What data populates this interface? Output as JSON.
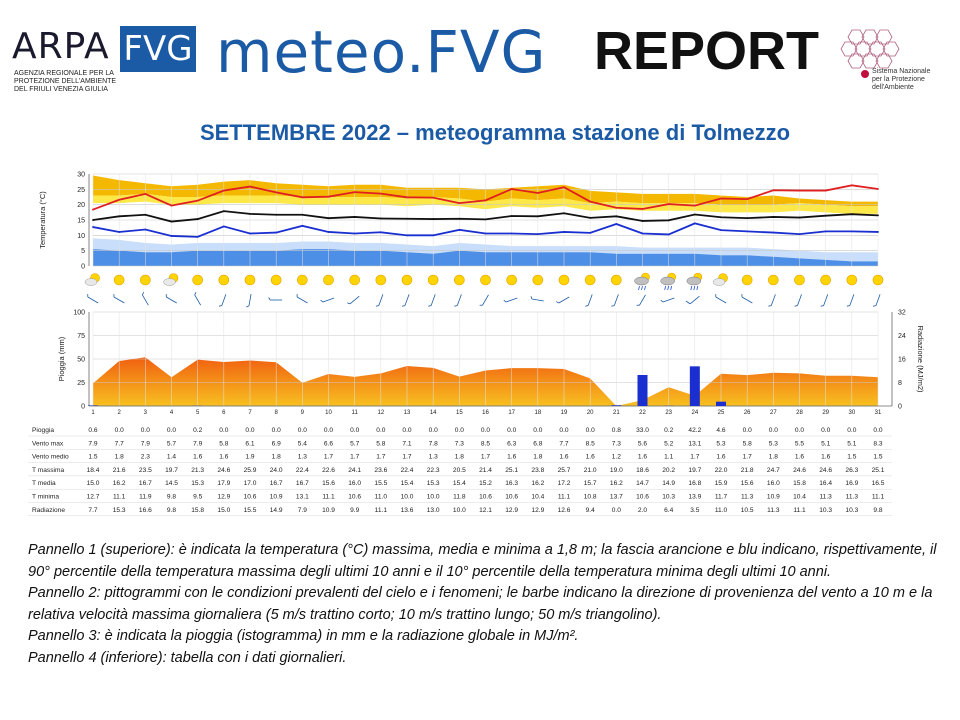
{
  "header": {
    "arpa": "ARPA",
    "fvg": "FVG",
    "agency_lines": [
      "AGENZIA REGIONALE PER LA",
      "PROTEZIONE DELL'AMBIENTE",
      "DEL FRIULI VENEZIA GIULIA"
    ],
    "meteo": "meteo.FVG",
    "report": "REPORT",
    "snpa_lines": [
      "Sistema Nazionale",
      "per la Protezione",
      "dell'Ambiente"
    ]
  },
  "subtitle": "SETTEMBRE 2022 – meteogramma stazione di Tolmezzo",
  "chart_data": [
    {
      "type": "line",
      "ylabel": "Temperatura (°C)",
      "ylim": [
        0,
        30
      ],
      "yticks": [
        0,
        5,
        10,
        15,
        20,
        25,
        30
      ],
      "x": [
        1,
        2,
        3,
        4,
        5,
        6,
        7,
        8,
        9,
        10,
        11,
        12,
        13,
        14,
        15,
        16,
        17,
        18,
        19,
        20,
        21,
        22,
        23,
        24,
        25,
        26,
        27,
        28,
        29,
        30,
        31
      ],
      "series": [
        {
          "name": "T massima",
          "color": "#e02020",
          "values": [
            18.4,
            21.6,
            23.5,
            19.7,
            21.3,
            24.6,
            25.9,
            24.0,
            22.4,
            22.6,
            24.1,
            23.6,
            22.4,
            22.3,
            20.5,
            21.4,
            25.1,
            23.8,
            25.7,
            21.0,
            19.0,
            18.6,
            20.2,
            19.7,
            22.0,
            21.8,
            24.7,
            24.6,
            24.6,
            26.3,
            25.1
          ]
        },
        {
          "name": "T media",
          "color": "#111111",
          "values": [
            15.0,
            16.2,
            16.7,
            14.5,
            15.3,
            17.9,
            17.0,
            16.7,
            16.7,
            15.6,
            16.0,
            15.5,
            15.4,
            15.3,
            15.4,
            15.2,
            16.3,
            16.2,
            17.2,
            15.7,
            16.2,
            14.7,
            14.9,
            16.8,
            15.9,
            15.6,
            16.0,
            15.8,
            16.4,
            16.9,
            16.5
          ]
        },
        {
          "name": "T minima",
          "color": "#1a2fd0",
          "values": [
            12.7,
            11.1,
            11.9,
            9.8,
            9.5,
            12.9,
            10.6,
            10.9,
            13.1,
            11.1,
            10.6,
            11.0,
            10.0,
            10.0,
            11.8,
            10.6,
            10.6,
            10.4,
            11.1,
            10.8,
            13.7,
            10.6,
            10.3,
            13.9,
            11.7,
            11.3,
            10.9,
            10.4,
            11.3,
            11.3,
            11.1
          ]
        }
      ],
      "band_max_p90": [
        29.5,
        28.0,
        27.0,
        26.0,
        26.5,
        27.5,
        28.0,
        27.0,
        26.5,
        26.0,
        26.5,
        26.5,
        25.5,
        25.5,
        25.5,
        25.0,
        25.5,
        26.0,
        26.5,
        24.5,
        24.0,
        23.5,
        23.5,
        23.5,
        23.0,
        22.5,
        23.0,
        22.0,
        21.5,
        21.0,
        21.0
      ],
      "band_max_mean": [
        23.0,
        23.0,
        23.5,
        22.5,
        22.5,
        23.0,
        23.0,
        23.0,
        22.5,
        22.5,
        22.5,
        22.5,
        22.0,
        22.5,
        22.0,
        21.0,
        22.0,
        21.5,
        22.0,
        20.5,
        21.0,
        20.5,
        20.5,
        20.5,
        20.0,
        20.0,
        20.0,
        20.5,
        20.0,
        19.5,
        19.5
      ],
      "band_min_mean": [
        9.0,
        8.5,
        7.5,
        7.0,
        7.5,
        7.5,
        7.5,
        7.5,
        8.0,
        8.0,
        7.5,
        7.5,
        7.0,
        6.5,
        7.5,
        7.0,
        6.5,
        6.5,
        6.5,
        6.5,
        6.5,
        6.0,
        6.0,
        6.0,
        6.0,
        6.0,
        5.5,
        5.0,
        4.5,
        4.5,
        4.5
      ],
      "band_min_p10": [
        5.5,
        5.0,
        4.5,
        4.5,
        5.0,
        5.0,
        5.0,
        5.0,
        5.5,
        5.5,
        5.0,
        5.0,
        4.5,
        4.0,
        5.0,
        4.5,
        4.5,
        4.5,
        4.5,
        4.5,
        4.0,
        4.0,
        4.0,
        4.0,
        3.5,
        3.5,
        3.0,
        2.5,
        2.0,
        1.5,
        1.5
      ],
      "grid": true
    },
    {
      "type": "bar",
      "ylabel": "Pioggia (mm)",
      "y2label": "Radiazione (MJ/m2)",
      "ylim": [
        0,
        100
      ],
      "yticks": [
        0,
        25,
        50,
        75,
        100
      ],
      "y2lim": [
        0,
        32
      ],
      "y2ticks": [
        0,
        8,
        16,
        24,
        32
      ],
      "x": [
        1,
        2,
        3,
        4,
        5,
        6,
        7,
        8,
        9,
        10,
        11,
        12,
        13,
        14,
        15,
        16,
        17,
        18,
        19,
        20,
        21,
        22,
        23,
        24,
        25,
        26,
        27,
        28,
        29,
        30,
        31
      ],
      "rain": [
        0.6,
        0.0,
        0.0,
        0.0,
        0.2,
        0.0,
        0.0,
        0.0,
        0.0,
        0.0,
        0.0,
        0.0,
        0.0,
        0.0,
        0.0,
        0.0,
        0.0,
        0.0,
        0.0,
        0.0,
        0.8,
        33.0,
        0.2,
        42.2,
        4.6,
        0.0,
        0.0,
        0.0,
        0.0,
        0.0,
        0.0
      ],
      "radiation": [
        7.7,
        15.3,
        16.6,
        9.8,
        15.8,
        15.0,
        15.5,
        14.9,
        7.9,
        10.9,
        9.9,
        11.1,
        13.6,
        13.0,
        10.0,
        12.1,
        12.9,
        12.9,
        12.6,
        9.4,
        0.0,
        2.0,
        6.4,
        3.5,
        11.0,
        10.5,
        11.3,
        11.1,
        10.3,
        10.3,
        9.8
      ],
      "grid": true
    }
  ],
  "pictograms": {
    "sky": [
      "sun-cloud",
      "sun",
      "sun",
      "sun-cloud",
      "sun",
      "sun",
      "sun",
      "sun",
      "sun",
      "sun",
      "sun",
      "sun",
      "sun",
      "sun",
      "sun",
      "sun",
      "sun",
      "sun",
      "sun",
      "sun",
      "sun",
      "rain-cloud",
      "rain-cloud",
      "rain-cloud",
      "sun-cloud",
      "sun",
      "sun",
      "sun",
      "sun",
      "sun",
      "sun"
    ],
    "wind_dir_deg": [
      300,
      300,
      330,
      300,
      330,
      200,
      190,
      270,
      300,
      250,
      230,
      200,
      200,
      200,
      200,
      210,
      250,
      280,
      240,
      200,
      200,
      210,
      250,
      230,
      300,
      300,
      200,
      200,
      200,
      200,
      200
    ],
    "wind_long_barb": [
      false,
      false,
      false,
      false,
      false,
      false,
      false,
      false,
      false,
      false,
      false,
      false,
      false,
      false,
      false,
      false,
      false,
      false,
      false,
      false,
      false,
      false,
      false,
      true,
      false,
      false,
      false,
      false,
      false,
      false,
      false
    ]
  },
  "table": {
    "days": [
      "1",
      "2",
      "3",
      "4",
      "5",
      "6",
      "7",
      "8",
      "9",
      "10",
      "11",
      "12",
      "13",
      "14",
      "15",
      "16",
      "17",
      "18",
      "19",
      "20",
      "21",
      "22",
      "23",
      "24",
      "25",
      "26",
      "27",
      "28",
      "29",
      "30",
      "31"
    ],
    "rows": [
      {
        "label": "Pioggia",
        "values": [
          "0.6",
          "0.0",
          "0.0",
          "0.0",
          "0.2",
          "0.0",
          "0.0",
          "0.0",
          "0.0",
          "0.0",
          "0.0",
          "0.0",
          "0.0",
          "0.0",
          "0.0",
          "0.0",
          "0.0",
          "0.0",
          "0.0",
          "0.0",
          "0.8",
          "33.0",
          "0.2",
          "42.2",
          "4.6",
          "0.0",
          "0.0",
          "0.0",
          "0.0",
          "0.0",
          "0.0"
        ]
      },
      {
        "label": "Vento max",
        "values": [
          "7.9",
          "7.7",
          "7.9",
          "5.7",
          "7.9",
          "5.8",
          "6.1",
          "6.9",
          "5.4",
          "6.6",
          "5.7",
          "5.8",
          "7.1",
          "7.8",
          "7.3",
          "8.5",
          "6.3",
          "6.8",
          "7.7",
          "8.5",
          "7.3",
          "5.6",
          "5.2",
          "13.1",
          "5.3",
          "5.8",
          "5.3",
          "5.5",
          "5.1",
          "5.1",
          "8.3"
        ]
      },
      {
        "label": "Vento medio",
        "values": [
          "1.5",
          "1.8",
          "2.3",
          "1.4",
          "1.6",
          "1.6",
          "1.9",
          "1.8",
          "1.3",
          "1.7",
          "1.7",
          "1.7",
          "1.7",
          "1.3",
          "1.8",
          "1.7",
          "1.6",
          "1.8",
          "1.6",
          "1.6",
          "1.2",
          "1.6",
          "1.1",
          "1.7",
          "1.6",
          "1.7",
          "1.8",
          "1.6",
          "1.6",
          "1.5",
          "1.5"
        ]
      },
      {
        "label": "T massima",
        "values": [
          "18.4",
          "21.6",
          "23.5",
          "19.7",
          "21.3",
          "24.6",
          "25.9",
          "24.0",
          "22.4",
          "22.6",
          "24.1",
          "23.6",
          "22.4",
          "22.3",
          "20.5",
          "21.4",
          "25.1",
          "23.8",
          "25.7",
          "21.0",
          "19.0",
          "18.6",
          "20.2",
          "19.7",
          "22.0",
          "21.8",
          "24.7",
          "24.6",
          "24.6",
          "26.3",
          "25.1"
        ]
      },
      {
        "label": "T media",
        "values": [
          "15.0",
          "16.2",
          "16.7",
          "14.5",
          "15.3",
          "17.9",
          "17.0",
          "16.7",
          "16.7",
          "15.6",
          "16.0",
          "15.5",
          "15.4",
          "15.3",
          "15.4",
          "15.2",
          "16.3",
          "16.2",
          "17.2",
          "15.7",
          "16.2",
          "14.7",
          "14.9",
          "16.8",
          "15.9",
          "15.6",
          "16.0",
          "15.8",
          "16.4",
          "16.9",
          "16.5"
        ]
      },
      {
        "label": "T minima",
        "values": [
          "12.7",
          "11.1",
          "11.9",
          "9.8",
          "9.5",
          "12.9",
          "10.6",
          "10.9",
          "13.1",
          "11.1",
          "10.6",
          "11.0",
          "10.0",
          "10.0",
          "11.8",
          "10.6",
          "10.6",
          "10.4",
          "11.1",
          "10.8",
          "13.7",
          "10.6",
          "10.3",
          "13.9",
          "11.7",
          "11.3",
          "10.9",
          "10.4",
          "11.3",
          "11.3",
          "11.1"
        ]
      },
      {
        "label": "Radiazione",
        "values": [
          "7.7",
          "15.3",
          "16.6",
          "9.8",
          "15.8",
          "15.0",
          "15.5",
          "14.9",
          "7.9",
          "10.9",
          "9.9",
          "11.1",
          "13.6",
          "13.0",
          "10.0",
          "12.1",
          "12.9",
          "12.9",
          "12.6",
          "9.4",
          "0.0",
          "2.0",
          "6.4",
          "3.5",
          "11.0",
          "10.5",
          "11.3",
          "11.1",
          "10.3",
          "10.3",
          "9.8"
        ]
      }
    ]
  },
  "caption": [
    "Pannello 1 (superiore): è indicata la temperatura (°C) massima, media e minima a 1,8 m; la fascia arancione e blu indicano, rispettivamente, il 90° percentile della temperatura massima degli ultimi 10 anni e il 10° percentile della temperatura minima degli ultimi 10 anni.",
    "Pannello 2: pittogrammi con le condizioni prevalenti del cielo e i fenomeni; le barbe indicano la direzione di provenienza del vento a 10 m e la relativa velocità massima giornaliera (5 m/s trattino corto; 10 m/s trattino lungo; 50 m/s triangolino).",
    "Pannello 3: è indicata la pioggia (istogramma) in mm e la radiazione globale in MJ/m².",
    "Pannello 4 (inferiore): tabella con i dati giornalieri."
  ],
  "colors": {
    "brand_blue": "#1b5aa5",
    "band_orange": "#f5b800",
    "band_yellow": "#fde84a",
    "band_blue": "#4d8fe6",
    "band_lightblue": "#c8defa",
    "rad_orange": "#f06010",
    "rad_yellow": "#f8c020",
    "rain_blue": "#1b2fd0"
  }
}
